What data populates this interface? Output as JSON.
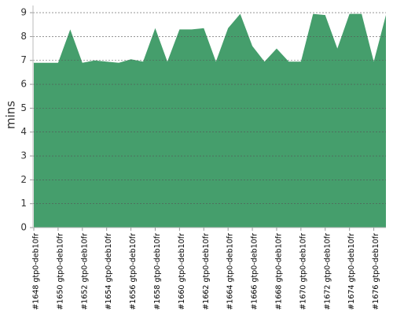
{
  "chart_data": {
    "type": "area",
    "y_label": "mins",
    "categories": [
      "#1648 gtp0-deb10fr",
      null,
      "#1650 gtp0-deb10fr",
      null,
      "#1652 gtp0-deb10fr",
      null,
      "#1654 gtp0-deb10fr",
      null,
      "#1656 gtp0-deb10fr",
      null,
      "#1658 gtp0-deb10fr",
      null,
      "#1660 gtp0-deb10fr",
      null,
      "#1662 gtp0-deb10fr",
      null,
      "#1664 gtp0-deb10fr",
      null,
      "#1666 gtp0-deb10fr",
      null,
      "#1668 gtp0-deb10fr",
      null,
      "#1670 gtp0-deb10fr",
      null,
      "#1672 gtp0-deb10fr",
      null,
      "#1674 gtp0-deb10fr",
      null,
      "#1676 gtp0-deb10fr",
      null
    ],
    "values": [
      6.9,
      6.9,
      6.9,
      8.3,
      6.9,
      7.0,
      6.95,
      6.9,
      7.05,
      6.95,
      8.35,
      6.95,
      8.3,
      8.3,
      8.35,
      6.95,
      8.35,
      8.95,
      7.6,
      6.95,
      7.5,
      6.95,
      6.95,
      8.95,
      8.9,
      7.5,
      8.95,
      8.95,
      6.95,
      8.9
    ],
    "color": "#459e6c",
    "ylim": [
      0,
      9.3
    ],
    "yticks": [
      0,
      1,
      2,
      3,
      4,
      5,
      6,
      7,
      8,
      9
    ],
    "grid": true
  }
}
